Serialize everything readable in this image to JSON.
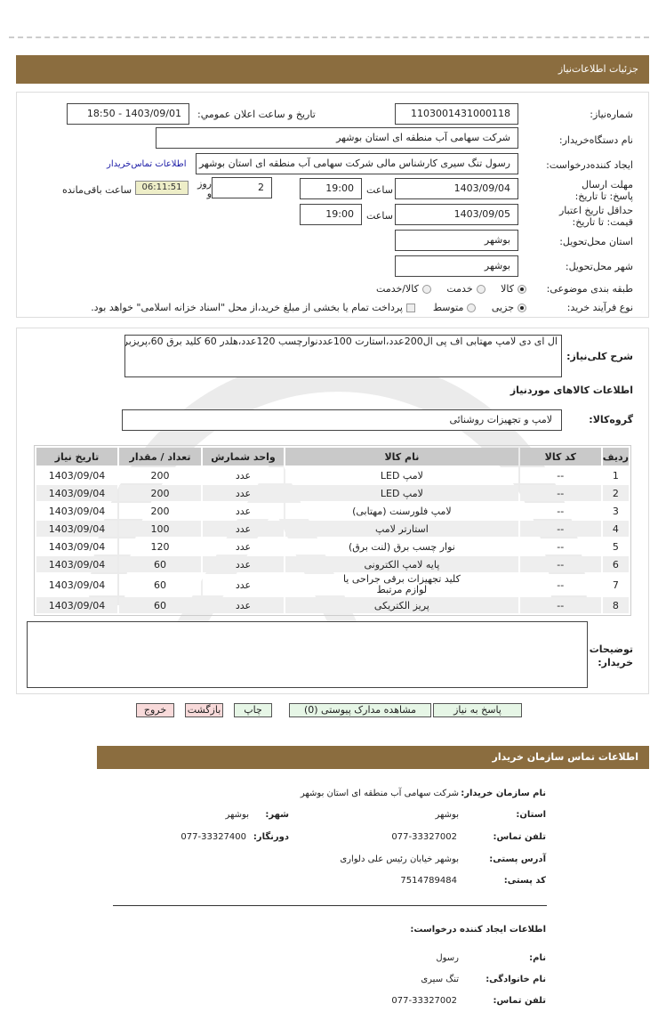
{
  "header": {
    "title": "جزئیات اطلاعات‌نیاز"
  },
  "form": {
    "need_number_label": "شماره‌نیاز:",
    "need_number": "1103001431000118",
    "announce_label": "تاریخ و ساعت اعلان عمومي:",
    "announce_value": "1403/09/01 - 18:50",
    "buyer_label": "نام دستگاه‌خریدار:",
    "buyer_value": "شرکت سهامی آب منطقه ای استان بوشهر",
    "creator_label": "ایجاد کننده‌درخواست:",
    "creator_value": "رسول تنگ سیری کارشناس مالی شرکت سهامی آب منطقه ای استان بوشهر",
    "contact_link": "اطلاعات تماس‌خریدار",
    "deadline_label": "مهلت ارسال پاسخ: تا تاریخ:",
    "deadline_date": "1403/09/04",
    "time_label": "ساعت",
    "deadline_time": "19:00",
    "days_value": "2",
    "days_label": "روز و",
    "timer": "06:11:51",
    "remaining_label": "ساعت باقی‌مانده",
    "validity_label": "حداقل تاریخ اعتبار قیمت: تا تاریخ:",
    "validity_date": "1403/09/05",
    "validity_time": "19:00",
    "province_label": "استان محل‌تحویل:",
    "province_value": "بوشهر",
    "city_label": "شهر محل‌تحویل:",
    "city_value": "بوشهر",
    "category_label": "طبقه بندی موضوعی:",
    "category_options": [
      {
        "label": "کالا",
        "selected": true
      },
      {
        "label": "خدمت",
        "selected": false
      },
      {
        "label": "کالا/خدمت",
        "selected": false
      }
    ],
    "purchase_label": "نوع فرآیند خرید:",
    "purchase_options": [
      {
        "label": "جزیی",
        "selected": true
      },
      {
        "label": "متوسط",
        "selected": false
      }
    ],
    "treasury_note": "پرداخت تمام یا بخشی از مبلغ خرید،از محل \"اسناد خزانه اسلامی\" خواهد بود."
  },
  "details": {
    "description_label": "شرح کلی‌نیاز:",
    "description": "ال ای دی لامپ مهتابی اف پی ال200عدد،استارت 100عددنوارچسب 120عدد،هلدر 60 کلید برق 60،پریزبرق 60عدد",
    "goods_title": "اطلاعات کالاهای موردنیاز",
    "group_label": "گروه‌کالا:",
    "group_value": "لامپ و تجهیزات روشنائی",
    "table": {
      "headers": [
        "ردیف",
        "کد کالا",
        "نام کالا",
        "واحد شمارش",
        "تعداد / مقدار",
        "تاریخ نیاز"
      ],
      "rows": [
        [
          "1",
          "--",
          "لامپ LED",
          "عدد",
          "200",
          "1403/09/04"
        ],
        [
          "2",
          "--",
          "لامپ LED",
          "عدد",
          "200",
          "1403/09/04"
        ],
        [
          "3",
          "--",
          "لامپ فلورسنت (مهتابی)",
          "عدد",
          "200",
          "1403/09/04"
        ],
        [
          "4",
          "--",
          "استارتر لامپ",
          "عدد",
          "100",
          "1403/09/04"
        ],
        [
          "5",
          "--",
          "نوار چسب برق (لنت برق)",
          "عدد",
          "120",
          "1403/09/04"
        ],
        [
          "6",
          "--",
          "پایه لامپ الکترونی",
          "عدد",
          "60",
          "1403/09/04"
        ],
        [
          "7",
          "--",
          "کلید تجهیزات برقی جراحی یا لوازم مرتبط",
          "عدد",
          "60",
          "1403/09/04"
        ],
        [
          "8",
          "--",
          "پریز الکتریکی",
          "عدد",
          "60",
          "1403/09/04"
        ]
      ]
    },
    "notes_label": "توضیحات خریدار:",
    "notes_value": ""
  },
  "buttons": {
    "reply": "پاسخ به نیاز",
    "attachments": "مشاهده مدارک پیوستی (0)",
    "print": "چاپ",
    "back": "بازگشت",
    "exit": "خروج"
  },
  "contact": {
    "title": "اطلاعات تماس سازمان خریدار",
    "org_label": "نام سازمان خریدار:",
    "org_value": "شرکت سهامی آب منطقه ای استان بوشهر",
    "province_label": "استان:",
    "province_value": "بوشهر",
    "city_label": "شهر:",
    "city_value": "بوشهر",
    "phone_label": "تلفن تماس:",
    "phone_value": "077-33327002",
    "fax_label": "دورنگار:",
    "fax_value": "077-33327400",
    "address_label": "آدرس پستی:",
    "address_value": "بوشهر خیابان رئیس علی دلواری",
    "postal_label": "کد پستی:",
    "postal_value": "7514789484",
    "creator_title": "اطلاعات ایجاد کننده درخواست:",
    "name_label": "نام:",
    "name_value": "رسول",
    "family_label": "نام خانوادگی:",
    "family_value": "تنگ سیری",
    "cphone_label": "تلفن تماس:",
    "cphone_value": "077-33327002"
  },
  "colors": {
    "header_bar": "#8b6d3f",
    "green_button": "#e6f6e6",
    "pink_button": "#f8dada",
    "timer_bg": "#eeeec8",
    "link": "#1a1aa6"
  }
}
